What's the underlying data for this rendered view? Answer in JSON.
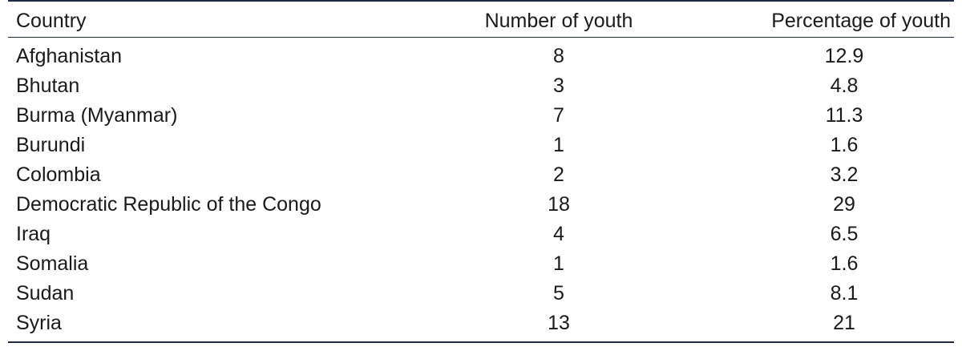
{
  "table": {
    "headers": {
      "country": "Country",
      "number": "Number of youth",
      "percentage": "Percentage of youth"
    },
    "rows": [
      {
        "country": "Afghanistan",
        "number": "8",
        "percentage": "12.9"
      },
      {
        "country": "Bhutan",
        "number": "3",
        "percentage": "4.8"
      },
      {
        "country": "Burma (Myanmar)",
        "number": "7",
        "percentage": "11.3"
      },
      {
        "country": "Burundi",
        "number": "1",
        "percentage": "1.6"
      },
      {
        "country": "Colombia",
        "number": "2",
        "percentage": "3.2"
      },
      {
        "country": "Democratic Republic of the Congo",
        "number": "18",
        "percentage": "29"
      },
      {
        "country": "Iraq",
        "number": "4",
        "percentage": "6.5"
      },
      {
        "country": "Somalia",
        "number": "1",
        "percentage": "1.6"
      },
      {
        "country": "Sudan",
        "number": "5",
        "percentage": "8.1"
      },
      {
        "country": "Syria",
        "number": "13",
        "percentage": "21"
      }
    ]
  },
  "colors": {
    "rule": "#1f2a44",
    "text": "#1a1a1a"
  }
}
